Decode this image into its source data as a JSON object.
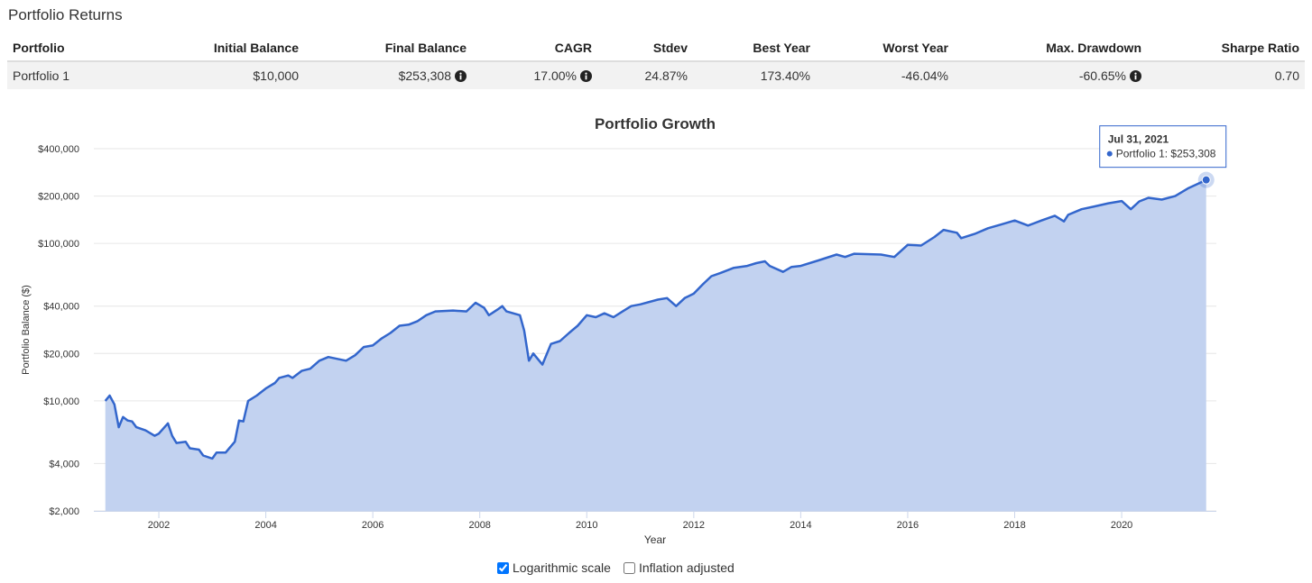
{
  "header": {
    "title": "Portfolio Returns"
  },
  "table": {
    "columns": [
      "Portfolio",
      "Initial Balance",
      "Final Balance",
      "CAGR",
      "Stdev",
      "Best Year",
      "Worst Year",
      "Max. Drawdown",
      "Sharpe Ratio"
    ],
    "rows": [
      [
        "Portfolio 1",
        "$10,000",
        "$253,308",
        "17.00%",
        "24.87%",
        "173.40%",
        "-46.04%",
        "-60.65%",
        "0.70"
      ]
    ]
  },
  "chart_data": {
    "type": "area",
    "title": "Portfolio Growth",
    "ylabel": "Portfolio Balance ($)",
    "xlabel": "Year",
    "log_scale": true,
    "grid": true,
    "xlim": [
      2000.785,
      2021.77
    ],
    "xticks": [
      2002,
      2004,
      2006,
      2008,
      2010,
      2012,
      2014,
      2016,
      2018,
      2020
    ],
    "ylim": [
      2000,
      400000
    ],
    "yticks": [
      {
        "value": 2000,
        "label": "$2,000"
      },
      {
        "value": 4000,
        "label": "$4,000"
      },
      {
        "value": 10000,
        "label": "$10,000"
      },
      {
        "value": 20000,
        "label": "$20,000"
      },
      {
        "value": 40000,
        "label": "$40,000"
      },
      {
        "value": 100000,
        "label": "$100,000"
      },
      {
        "value": 200000,
        "label": "$200,000"
      },
      {
        "value": 400000,
        "label": "$400,000"
      }
    ],
    "x": [
      2001.0,
      2001.08,
      2001.17,
      2001.25,
      2001.33,
      2001.42,
      2001.5,
      2001.58,
      2001.75,
      2001.92,
      2002.0,
      2002.17,
      2002.25,
      2002.33,
      2002.5,
      2002.58,
      2002.75,
      2002.83,
      2003.0,
      2003.08,
      2003.25,
      2003.42,
      2003.5,
      2003.58,
      2003.67,
      2003.83,
      2004.0,
      2004.17,
      2004.25,
      2004.42,
      2004.5,
      2004.67,
      2004.83,
      2005.0,
      2005.17,
      2005.33,
      2005.5,
      2005.67,
      2005.83,
      2006.0,
      2006.17,
      2006.33,
      2006.5,
      2006.67,
      2006.83,
      2007.0,
      2007.17,
      2007.5,
      2007.75,
      2007.92,
      2008.08,
      2008.17,
      2008.33,
      2008.42,
      2008.5,
      2008.75,
      2008.83,
      2008.92,
      2009.0,
      2009.17,
      2009.33,
      2009.5,
      2009.67,
      2009.83,
      2010.0,
      2010.17,
      2010.33,
      2010.5,
      2010.67,
      2010.83,
      2011.0,
      2011.33,
      2011.5,
      2011.67,
      2011.83,
      2012.0,
      2012.17,
      2012.33,
      2012.5,
      2012.75,
      2013.0,
      2013.17,
      2013.33,
      2013.42,
      2013.67,
      2013.83,
      2014.0,
      2014.33,
      2014.67,
      2014.83,
      2015.0,
      2015.5,
      2015.75,
      2016.0,
      2016.25,
      2016.5,
      2016.67,
      2016.92,
      2017.0,
      2017.25,
      2017.5,
      2017.75,
      2018.0,
      2018.25,
      2018.5,
      2018.75,
      2018.92,
      2019.0,
      2019.25,
      2019.5,
      2019.75,
      2020.0,
      2020.17,
      2020.33,
      2020.5,
      2020.75,
      2021.0,
      2021.25,
      2021.58
    ],
    "series": [
      {
        "color": "#3366cc",
        "fill": "#c2d2f0",
        "values": [
          10000,
          10800,
          9500,
          6800,
          7900,
          7500,
          7400,
          6800,
          6500,
          6000,
          6200,
          7200,
          6000,
          5400,
          5500,
          5000,
          4900,
          4500,
          4300,
          4700,
          4700,
          5500,
          7500,
          7400,
          10000,
          10800,
          12000,
          13000,
          14000,
          14500,
          14000,
          15500,
          16000,
          18000,
          19000,
          18500,
          18000,
          19500,
          22000,
          22500,
          25000,
          27000,
          30000,
          30500,
          32000,
          35000,
          37000,
          37500,
          37000,
          42000,
          39000,
          35000,
          38000,
          40000,
          37000,
          35000,
          28000,
          18000,
          20000,
          17000,
          23000,
          24000,
          27000,
          30000,
          35000,
          34000,
          36000,
          34000,
          37000,
          40000,
          41000,
          44000,
          45000,
          40000,
          45000,
          48000,
          55000,
          62000,
          65000,
          70000,
          72000,
          75000,
          77000,
          72000,
          66000,
          71000,
          72000,
          78000,
          85000,
          82000,
          86000,
          85000,
          82000,
          98000,
          97000,
          110000,
          122000,
          117000,
          108000,
          115000,
          125000,
          132000,
          140000,
          130000,
          140000,
          150000,
          138000,
          152000,
          165000,
          172000,
          180000,
          186000,
          165000,
          185000,
          195000,
          190000,
          200000,
          225000,
          253308
        ]
      }
    ],
    "tooltip": {
      "date": "Jul 31, 2021",
      "text": "Portfolio 1: $253,308"
    }
  },
  "options": [
    {
      "label": "Logarithmic scale",
      "checked": true
    },
    {
      "label": "Inflation adjusted",
      "checked": false
    }
  ]
}
